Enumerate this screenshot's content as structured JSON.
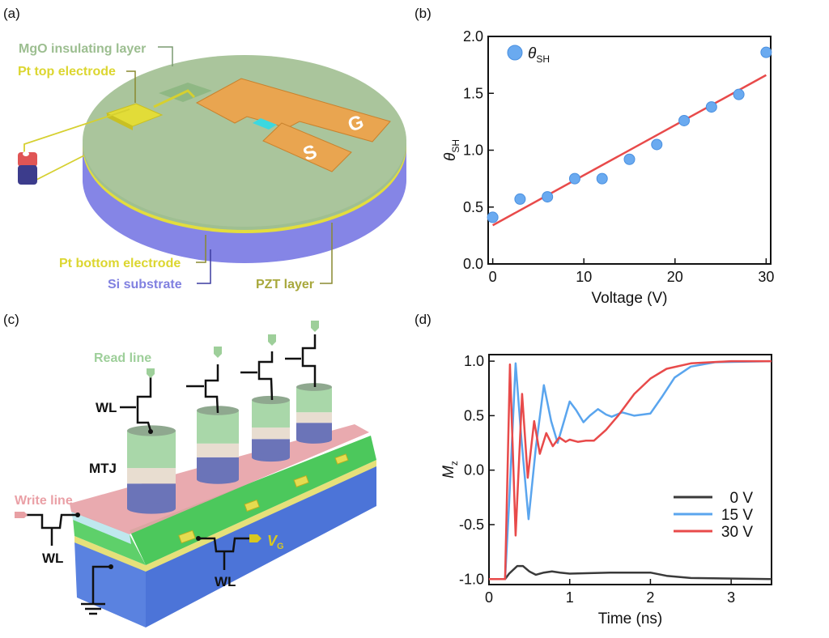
{
  "panels": {
    "a": {
      "label": "(a)",
      "labels": {
        "mgo": "MgO insulating layer",
        "pt_top": "Pt top electrode",
        "pt_bottom": "Pt bottom electrode",
        "si": "Si substrate",
        "pzt": "PZT layer",
        "s_pad": "S",
        "g_pad": "G"
      },
      "colors": {
        "mgo": "#a9c49a",
        "pt": "#e0dc3a",
        "si": "#8787e8",
        "pad": "#e9a550"
      }
    },
    "b": {
      "label": "(b)"
    },
    "c": {
      "label": "(c)",
      "labels": {
        "read_line": "Read line",
        "write_line": "Write line",
        "wl_top": "WL",
        "wl_left": "WL",
        "wl_bottom": "WL",
        "mtj": "MTJ",
        "vg": "V",
        "vg_sub": "G"
      }
    },
    "d": {
      "label": "(d)"
    }
  },
  "chart_data": [
    {
      "type": "scatter",
      "xlabel": "Voltage (V)",
      "ylabel": "θ",
      "ylabel_sub": "SH",
      "xlim": [
        -0.5,
        30.5
      ],
      "ylim": [
        0,
        2.0
      ],
      "xticks": [
        0,
        10,
        20,
        30
      ],
      "yticks": [
        0.0,
        0.5,
        1.0,
        1.5,
        2.0
      ],
      "ytick_labels": [
        "0.0",
        "0.5",
        "1.0",
        "1.5",
        "2.0"
      ],
      "grid": false,
      "legend": {
        "position": "top-left",
        "entries": [
          {
            "name": "θ",
            "sub": "SH"
          }
        ]
      },
      "series": [
        {
          "name": "θSH",
          "color": "#6aaaf0",
          "x": [
            0,
            3,
            6,
            9,
            12,
            15,
            18,
            21,
            24,
            27,
            30
          ],
          "y": [
            0.41,
            0.57,
            0.59,
            0.75,
            0.75,
            0.92,
            1.05,
            1.26,
            1.38,
            1.49,
            1.86
          ]
        },
        {
          "fit": true,
          "color": "#e84a4a",
          "x": [
            0,
            30
          ],
          "y": [
            0.34,
            1.66
          ]
        }
      ]
    },
    {
      "type": "line",
      "xlabel": "Time (ns)",
      "ylabel": "M",
      "ylabel_sub": "z",
      "xlim": [
        0,
        3.5
      ],
      "ylim": [
        -1.05,
        1.06
      ],
      "xticks": [
        0,
        1,
        2,
        3
      ],
      "yticks": [
        -1.0,
        -0.5,
        0.0,
        0.5,
        1.0
      ],
      "ytick_labels": [
        "-1.0",
        "-0.5",
        "0.0",
        "0.5",
        "1.0"
      ],
      "grid": false,
      "legend": {
        "position": "bottom-right"
      },
      "series": [
        {
          "name": "0 V",
          "color": "#3a3a3a",
          "x": [
            0,
            0.2,
            0.25,
            0.35,
            0.42,
            0.5,
            0.58,
            0.68,
            0.78,
            0.88,
            1.0,
            1.5,
            2.0,
            2.2,
            2.5,
            3.5
          ],
          "y": [
            -1,
            -1,
            -0.95,
            -0.88,
            -0.88,
            -0.93,
            -0.96,
            -0.94,
            -0.93,
            -0.94,
            -0.95,
            -0.94,
            -0.94,
            -0.97,
            -0.99,
            -1.0
          ]
        },
        {
          "name": "15 V",
          "color": "#5aa5ee",
          "x": [
            0,
            0.2,
            0.25,
            0.33,
            0.4,
            0.49,
            0.58,
            0.68,
            0.77,
            0.85,
            0.93,
            1.0,
            1.08,
            1.17,
            1.25,
            1.35,
            1.45,
            1.52,
            1.65,
            1.8,
            2.0,
            2.15,
            2.3,
            2.5,
            2.8,
            3.5
          ],
          "y": [
            -1,
            -1,
            -0.3,
            0.98,
            0.3,
            -0.45,
            0.2,
            0.78,
            0.45,
            0.25,
            0.45,
            0.63,
            0.55,
            0.44,
            0.5,
            0.56,
            0.51,
            0.49,
            0.53,
            0.5,
            0.52,
            0.68,
            0.85,
            0.95,
            0.99,
            1.0
          ]
        },
        {
          "name": "30 V",
          "color": "#e84a4a",
          "x": [
            0,
            0.2,
            0.26,
            0.33,
            0.41,
            0.48,
            0.56,
            0.63,
            0.71,
            0.79,
            0.87,
            0.95,
            1.0,
            1.1,
            1.2,
            1.3,
            1.45,
            1.6,
            1.8,
            2.0,
            2.2,
            2.5,
            3.0,
            3.5
          ],
          "y": [
            -1,
            -1,
            0.97,
            -0.6,
            0.7,
            -0.07,
            0.45,
            0.15,
            0.34,
            0.22,
            0.3,
            0.26,
            0.28,
            0.26,
            0.27,
            0.27,
            0.37,
            0.5,
            0.7,
            0.84,
            0.93,
            0.98,
            1.0,
            1.0
          ]
        }
      ]
    }
  ]
}
